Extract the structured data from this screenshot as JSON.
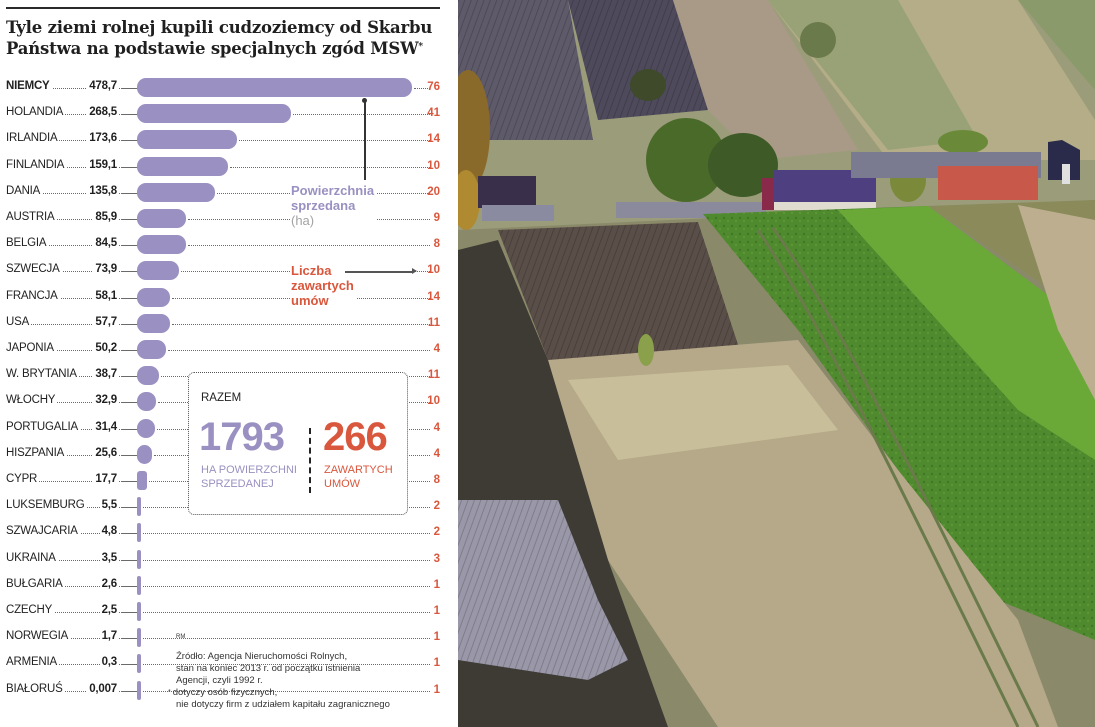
{
  "title": "Tyle ziemi rolnej kupili cudzoziemcy od Skarbu Państwa na podstawie specjalnych zgód MSW",
  "title_line1": "Tyle ziemi rolnej kupili cudzoziemcy od Skarbu",
  "title_line2": "Państwa na podstawie specjalnych zgód MSW",
  "title_footnote_mark": "*",
  "colors": {
    "area": "#9a90c1",
    "count": "#d9573d",
    "text": "#1f1f1f"
  },
  "legend": {
    "area_label_line1": "Powierzchnia",
    "area_label_line2": "sprzedana",
    "area_unit": "(ha)",
    "count_label_line1": "Liczba",
    "count_label_line2": "zawartych",
    "count_label_line3": "umów"
  },
  "totals": {
    "label": "RAZEM",
    "area_value": "1793",
    "area_caption_line1": "HA POWIERZCHNI",
    "area_caption_line2": "SPRZEDANEJ",
    "count_value": "266",
    "count_caption_line1": "ZAWARTYCH",
    "count_caption_line2": "UMÓW"
  },
  "credit": "RM",
  "source_line1": "Źródło: Agencja Nieruchomości Rolnych,",
  "source_line2": "stan na koniec 2013 r. od początku istnienia",
  "source_line3": "Agencji, czyli 1992 r.",
  "footnote_mark": "*",
  "footnote_line1": "dotyczy osób fizycznych,",
  "footnote_line2": "nie dotyczy firm z udziałem kapitału zagranicznego",
  "rows": [
    {
      "country": "NIEMCY",
      "area": "478,7",
      "count": "76"
    },
    {
      "country": "HOLANDIA",
      "area": "268,5",
      "count": "41"
    },
    {
      "country": "IRLANDIA",
      "area": "173,6",
      "count": "14"
    },
    {
      "country": "FINLANDIA",
      "area": "159,1",
      "count": "10"
    },
    {
      "country": "DANIA",
      "area": "135,8",
      "count": "20"
    },
    {
      "country": "AUSTRIA",
      "area": "85,9",
      "count": "9"
    },
    {
      "country": "BELGIA",
      "area": "84,5",
      "count": "8"
    },
    {
      "country": "SZWECJA",
      "area": "73,9",
      "count": "10"
    },
    {
      "country": "FRANCJA",
      "area": "58,1",
      "count": "14"
    },
    {
      "country": "USA",
      "area": "57,7",
      "count": "11"
    },
    {
      "country": "JAPONIA",
      "area": "50,2",
      "count": "4"
    },
    {
      "country": "W. BRYTANIA",
      "area": "38,7",
      "count": "11"
    },
    {
      "country": "WŁOCHY",
      "area": "32,9",
      "count": "10"
    },
    {
      "country": "PORTUGALIA",
      "area": "31,4",
      "count": "4"
    },
    {
      "country": "HISZPANIA",
      "area": "25,6",
      "count": "4"
    },
    {
      "country": "CYPR",
      "area": "17,7",
      "count": "8"
    },
    {
      "country": "LUKSEMBURG",
      "area": "5,5",
      "count": "2"
    },
    {
      "country": "SZWAJCARIA",
      "area": "4,8",
      "count": "2"
    },
    {
      "country": "UKRAINA",
      "area": "3,5",
      "count": "3"
    },
    {
      "country": "BUŁGARIA",
      "area": "2,6",
      "count": "1"
    },
    {
      "country": "CZECHY",
      "area": "2,5",
      "count": "1"
    },
    {
      "country": "NORWEGIA",
      "area": "1,7",
      "count": "1"
    },
    {
      "country": "ARMENIA",
      "area": "0,3",
      "count": "1"
    },
    {
      "country": "BIAŁORUŚ",
      "area": "0,007",
      "count": "1"
    }
  ],
  "photo": {
    "subject": "rural-landscape-photo",
    "description": "Hillside farmland strips with village houses"
  },
  "chart_data": {
    "type": "bar",
    "orientation": "horizontal",
    "title": "Tyle ziemi rolnej kupili cudzoziemcy od Skarbu Państwa na podstawie specjalnych zgód MSW*",
    "categories": [
      "NIEMCY",
      "HOLANDIA",
      "IRLANDIA",
      "FINLANDIA",
      "DANIA",
      "AUSTRIA",
      "BELGIA",
      "SZWECJA",
      "FRANCJA",
      "USA",
      "JAPONIA",
      "W. BRYTANIA",
      "WŁOCHY",
      "PORTUGALIA",
      "HISZPANIA",
      "CYPR",
      "LUKSEMBURG",
      "SZWAJCARIA",
      "UKRAINA",
      "BUŁGARIA",
      "CZECHY",
      "NORWEGIA",
      "ARMENIA",
      "BIAŁORUŚ"
    ],
    "series": [
      {
        "name": "Powierzchnia sprzedana (ha)",
        "color": "#9a90c1",
        "values": [
          478.7,
          268.5,
          173.6,
          159.1,
          135.8,
          85.9,
          84.5,
          73.9,
          58.1,
          57.7,
          50.2,
          38.7,
          32.9,
          31.4,
          25.6,
          17.7,
          5.5,
          4.8,
          3.5,
          2.6,
          2.5,
          1.7,
          0.3,
          0.007
        ]
      },
      {
        "name": "Liczba zawartych umów",
        "color": "#d9573d",
        "values": [
          76,
          41,
          14,
          10,
          20,
          9,
          8,
          10,
          14,
          11,
          4,
          11,
          10,
          4,
          4,
          8,
          2,
          2,
          3,
          1,
          1,
          1,
          1,
          1
        ]
      }
    ],
    "totals": {
      "area_ha": 1793,
      "contracts": 266
    },
    "xlabel": "",
    "ylabel": "",
    "grid": false,
    "legend_position": "inline-right",
    "annotations": [
      "RAZEM 1793 ha powierzchni sprzedanej",
      "266 zawartych umów",
      "Źródło: Agencja Nieruchomości Rolnych, stan na koniec 2013 r. od początku istnienia Agencji, czyli 1992 r.",
      "* dotyczy osób fizycznych, nie dotyczy firm z udziałem kapitału zagranicznego"
    ]
  }
}
